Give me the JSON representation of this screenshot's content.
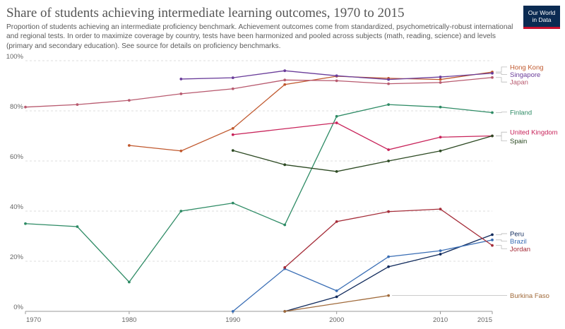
{
  "header": {
    "title": "Share of students achieving intermediate learning outcomes, 1970 to 2015",
    "subtitle": "Proportion of students achieving an intermediate proficiency benchmark. Achievement outcomes come from standardized, psychometrically-robust international and regional tests. In order to maximize coverage by country, tests have been harmonized and pooled across subjects (math, reading, science) and levels (primary and secondary education). See source for details on proficiency benchmarks.",
    "logo_line1": "Our World",
    "logo_line2": "in Data"
  },
  "chart_data": {
    "type": "line",
    "title": "Share of students achieving intermediate learning outcomes, 1970 to 2015",
    "xlim": [
      1970,
      2015
    ],
    "ylim": [
      0,
      100
    ],
    "x_ticks": [
      1970,
      1980,
      1990,
      2000,
      2010,
      2015
    ],
    "y_ticks": [
      0,
      20,
      40,
      60,
      80,
      100
    ],
    "y_tick_labels": [
      "0%",
      "20%",
      "40%",
      "60%",
      "80%",
      "100%"
    ],
    "grid": "horizontal-dashed",
    "legend": "right-labels",
    "series": [
      {
        "name": "Hong Kong",
        "color": "#c0582d",
        "label_y": 97.5,
        "x": [
          1980,
          1985,
          1990,
          1995,
          2000,
          2005,
          2010,
          2015
        ],
        "y": [
          66.2,
          64.0,
          73.0,
          90.5,
          93.8,
          93.0,
          92.5,
          95.5
        ]
      },
      {
        "name": "Singapore",
        "color": "#6a3d9a",
        "label_y": 94.5,
        "x": [
          1985,
          1990,
          1995,
          2000,
          2005,
          2010,
          2015
        ],
        "y": [
          92.7,
          93.2,
          96.0,
          94.0,
          92.5,
          93.5,
          95.0
        ]
      },
      {
        "name": "Japan",
        "color": "#b85a6f",
        "label_y": 91.5,
        "x": [
          1970,
          1975,
          1980,
          1985,
          1990,
          1995,
          2000,
          2005,
          2010,
          2015
        ],
        "y": [
          81.5,
          82.5,
          84.2,
          86.8,
          88.8,
          92.3,
          92.0,
          90.8,
          91.3,
          93.3
        ]
      },
      {
        "name": "Finland",
        "color": "#2e8b65",
        "label_y": 79.5,
        "x": [
          1970,
          1975,
          1980,
          1985,
          1990,
          1995,
          2000,
          2005,
          2010,
          2015
        ],
        "y": [
          35.0,
          33.8,
          11.7,
          40.0,
          43.2,
          34.5,
          77.8,
          82.5,
          81.5,
          79.3
        ]
      },
      {
        "name": "United Kingdom",
        "color": "#c8235a",
        "label_y": 71.5,
        "x": [
          1990,
          2000,
          2005,
          2010,
          2015
        ],
        "y": [
          70.5,
          75.2,
          64.5,
          69.5,
          70.0
        ]
      },
      {
        "name": "Spain",
        "color": "#2d4a23",
        "label_y": 68.0,
        "x": [
          1990,
          1995,
          2000,
          2005,
          2010,
          2015
        ],
        "y": [
          64.2,
          58.5,
          55.8,
          60.0,
          64.0,
          70.0
        ]
      },
      {
        "name": "Peru",
        "color": "#102a5c",
        "label_y": 31.0,
        "x": [
          1995,
          2000,
          2005,
          2010,
          2015
        ],
        "y": [
          0.0,
          5.8,
          17.8,
          22.8,
          30.6
        ]
      },
      {
        "name": "Brazil",
        "color": "#3a6eb5",
        "label_y": 28.0,
        "x": [
          1990,
          1995,
          2000,
          2005,
          2010,
          2015
        ],
        "y": [
          0.0,
          17.0,
          8.2,
          21.8,
          24.2,
          28.5
        ]
      },
      {
        "name": "Jordan",
        "color": "#a52d39",
        "label_y": 25.0,
        "x": [
          1995,
          2000,
          2005,
          2010,
          2015
        ],
        "y": [
          17.5,
          35.8,
          39.8,
          40.8,
          26.3
        ]
      },
      {
        "name": "Burkina Faso",
        "color": "#a06a3a",
        "label_y": 6.3,
        "x": [
          1995,
          2005
        ],
        "y": [
          0.0,
          6.3
        ]
      }
    ]
  }
}
